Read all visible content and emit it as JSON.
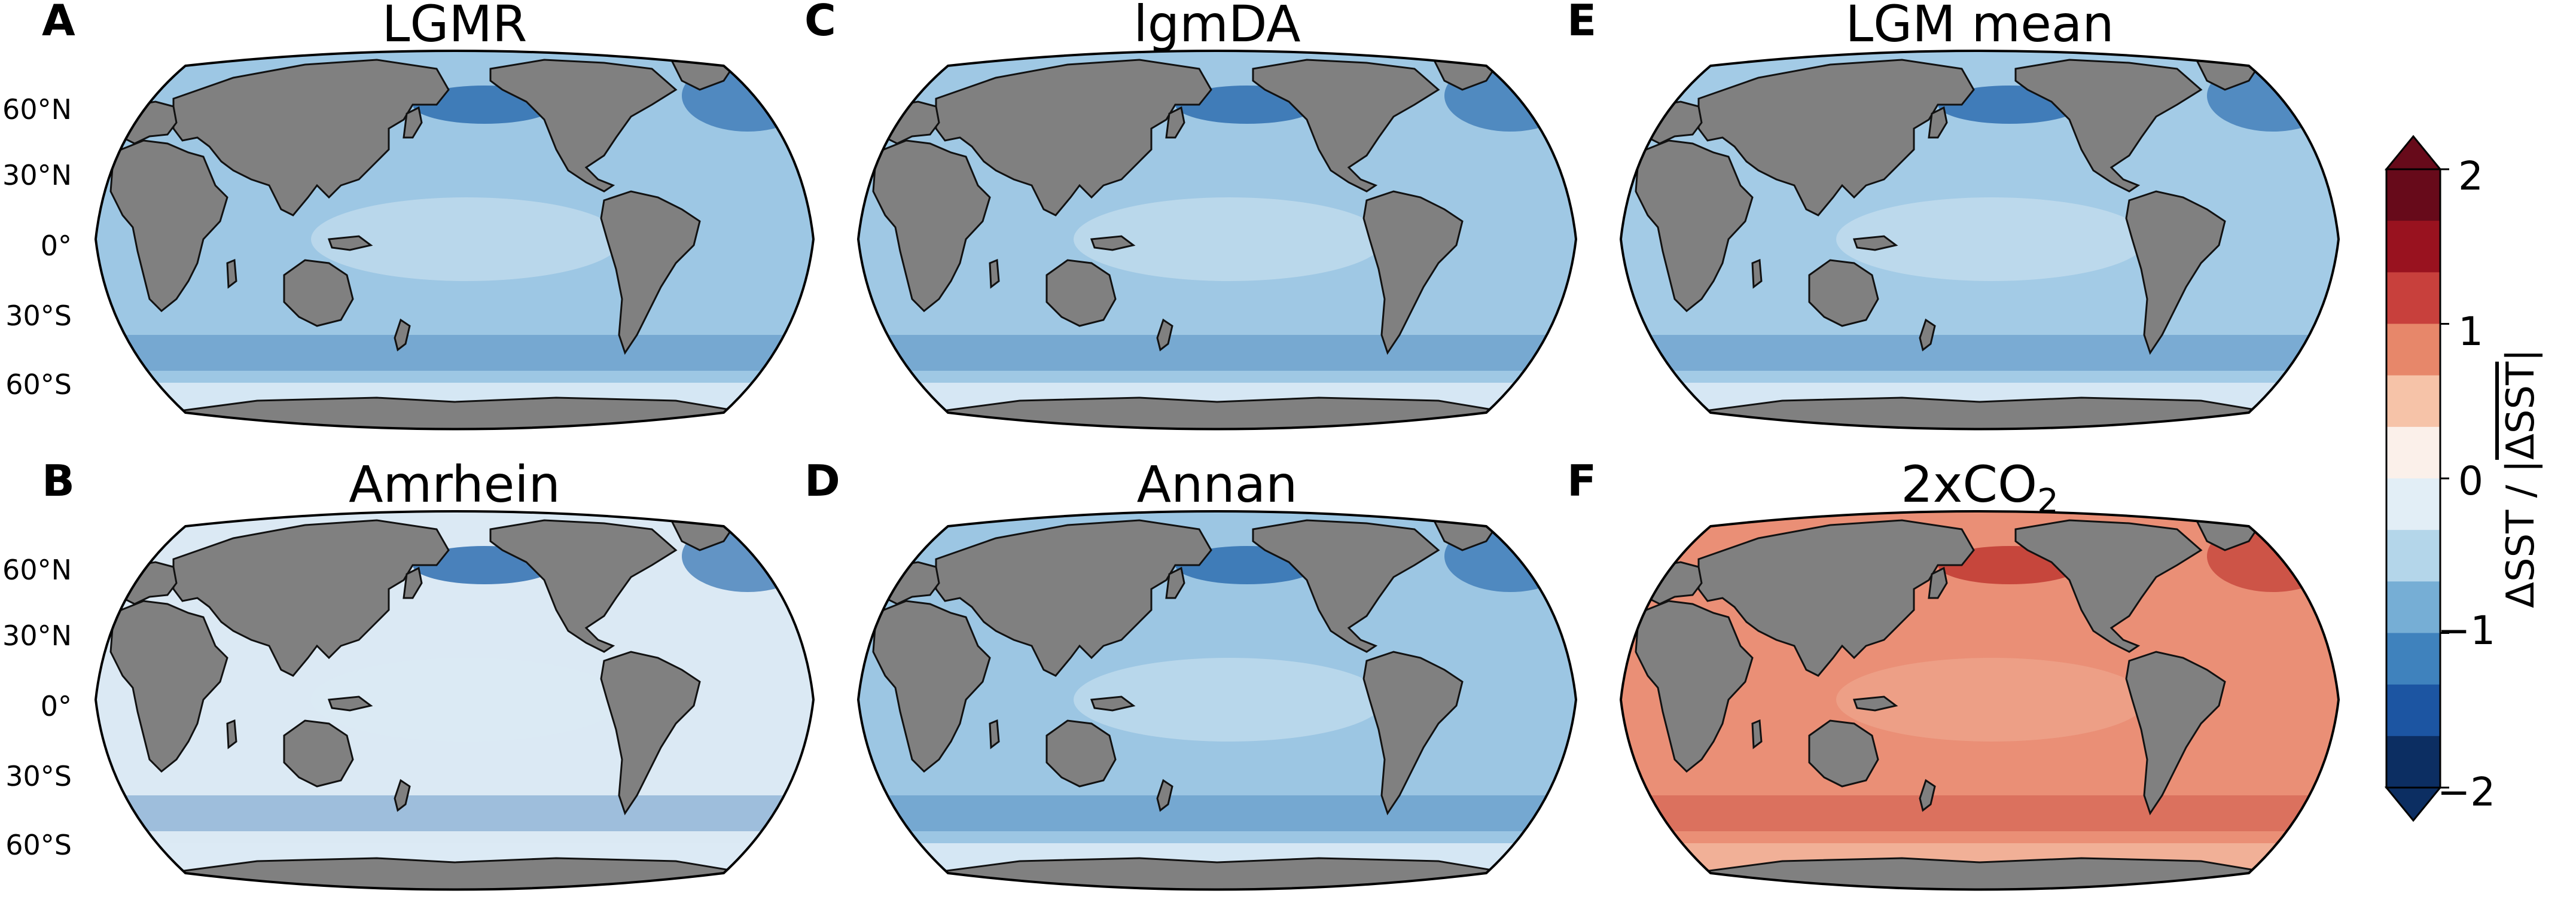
{
  "panels": [
    {
      "letter": "A",
      "title": "LGMR",
      "fill": "#9dc7e4",
      "lats": [
        "60°N",
        "30°N",
        "0°",
        "30°S",
        "60°S"
      ]
    },
    {
      "letter": "B",
      "title": "Amrhein",
      "fill": "#dbe9f4",
      "lats": [
        "60°N",
        "30°N",
        "0°",
        "30°S",
        "60°S"
      ]
    },
    {
      "letter": "C",
      "title": "lgmDA",
      "fill": "#9fc8e4",
      "lats": []
    },
    {
      "letter": "D",
      "title": "Annan",
      "fill": "#9cc6e3",
      "lats": []
    },
    {
      "letter": "E",
      "title": "LGM mean",
      "fill": "#a3cbe6",
      "lats": []
    },
    {
      "letter": "F",
      "title": "2xCO",
      "title_sub": "2",
      "fill": "#ea8f76",
      "lats": []
    }
  ],
  "colorbar": {
    "ticks": [
      "2",
      "1",
      "0",
      "−1",
      "−2"
    ],
    "label_main": "ΔSST / |",
    "label_bar": "ΔSST",
    "label_end": "|",
    "colors": [
      "#0c2e62",
      "#1c55a2",
      "#3f82bd",
      "#76aed5",
      "#b4d6ea",
      "#e2eef6",
      "#fbf0ea",
      "#f6c3a8",
      "#e7876a",
      "#c8403c",
      "#99121f",
      "#670a1a"
    ]
  },
  "colors": {
    "land": "#808080",
    "coast": "#111111"
  }
}
